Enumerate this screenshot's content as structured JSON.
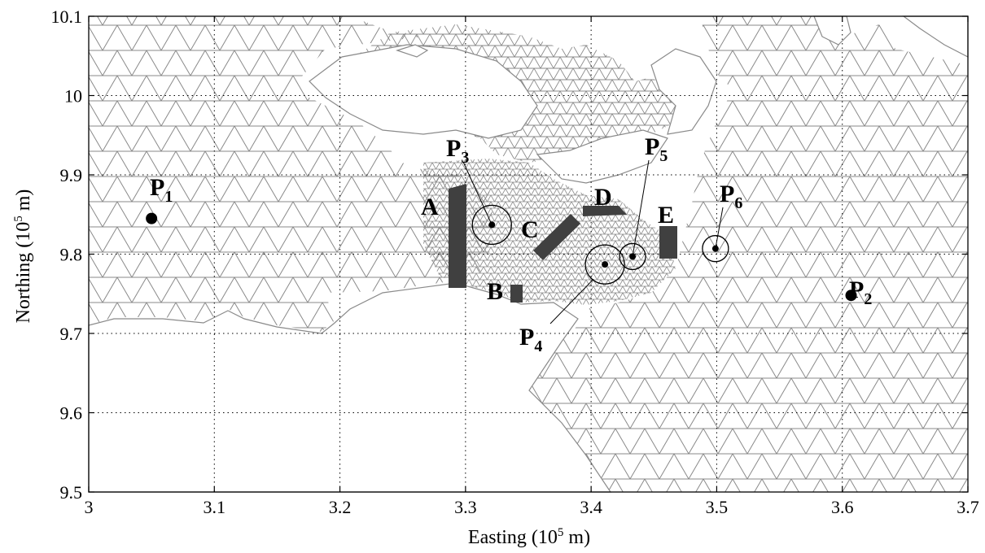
{
  "figure": {
    "xlabel_main": "Easting (10",
    "xlabel_exp": "5",
    "xlabel_unit": " m)",
    "ylabel_main": "Northing (10",
    "ylabel_exp": "5",
    "ylabel_unit": " m)"
  },
  "axes": {
    "x": {
      "min": 3.0,
      "max": 3.7,
      "ticks": [
        3,
        3.1,
        3.2,
        3.3,
        3.4,
        3.5,
        3.6,
        3.7
      ],
      "tick_labels": [
        "3",
        "3.1",
        "3.2",
        "3.3",
        "3.4",
        "3.5",
        "3.6",
        "3.7"
      ]
    },
    "y": {
      "min": 9.5,
      "max": 10.1,
      "ticks": [
        9.5,
        9.6,
        9.7,
        9.8,
        9.9,
        10,
        10.1
      ],
      "tick_labels": [
        "9.5",
        "9.6",
        "9.7",
        "9.8",
        "9.9",
        "10",
        "10.1"
      ]
    },
    "grid": "dotted"
  },
  "colors": {
    "mesh": "#8a8a8a",
    "barrier": "#404040",
    "axis": "#000000"
  },
  "barriers": [
    {
      "label": "A",
      "x": 3.295,
      "y": 9.815
    },
    {
      "label": "B",
      "x": 3.339,
      "y": 9.747
    },
    {
      "label": "C",
      "x": 3.362,
      "y": 9.815
    },
    {
      "label": "D",
      "x": 3.415,
      "y": 9.845
    },
    {
      "label": "E",
      "x": 3.465,
      "y": 9.805
    }
  ],
  "points": [
    {
      "label": "P",
      "index": "1",
      "x": 3.05,
      "y": 9.845,
      "marker": "dot"
    },
    {
      "label": "P",
      "index": "2",
      "x": 3.607,
      "y": 9.748,
      "marker": "dot"
    },
    {
      "label": "P",
      "index": "3",
      "x": 3.321,
      "y": 9.837,
      "marker": "circle"
    },
    {
      "label": "P",
      "index": "4",
      "x": 3.411,
      "y": 9.787,
      "marker": "circle"
    },
    {
      "label": "P",
      "index": "5",
      "x": 3.433,
      "y": 9.797,
      "marker": "circle"
    },
    {
      "label": "P",
      "index": "6",
      "x": 3.499,
      "y": 9.807,
      "marker": "circle"
    }
  ]
}
